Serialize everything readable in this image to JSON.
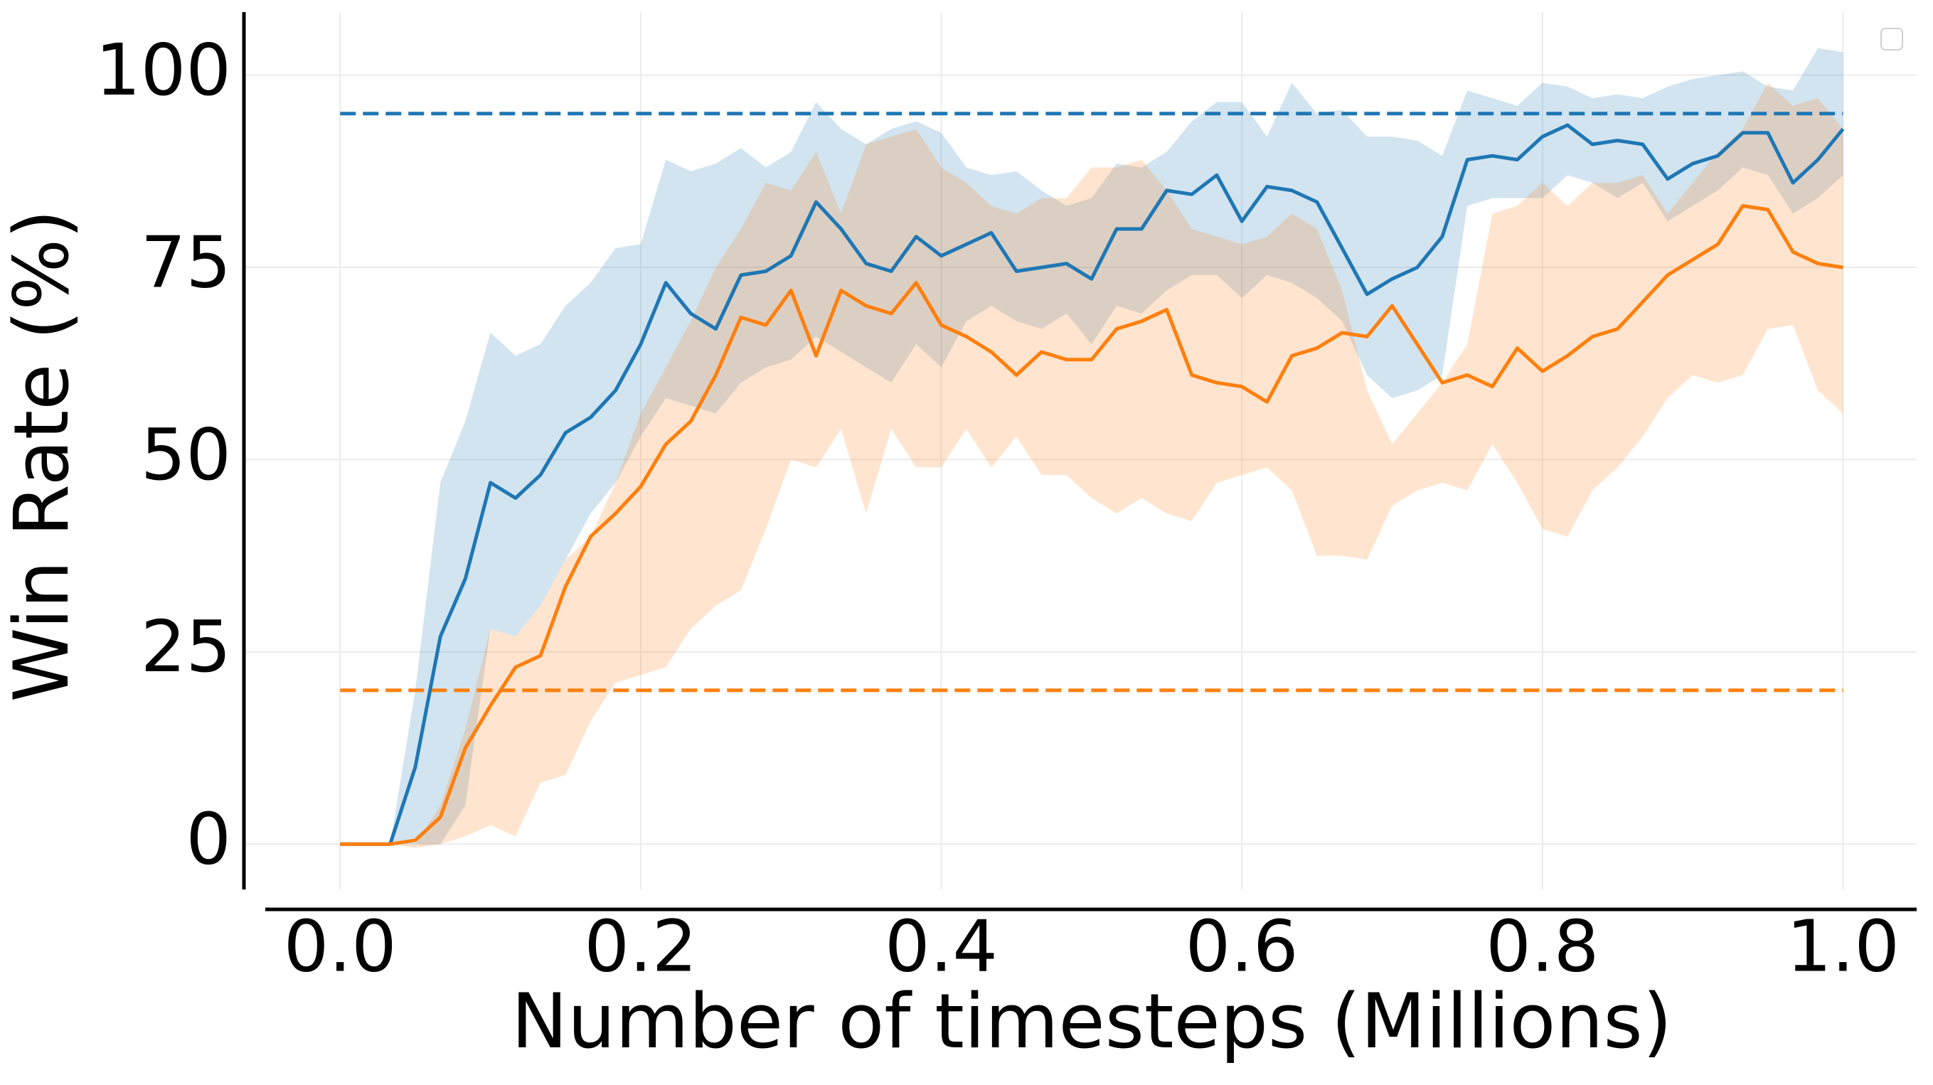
{
  "chart_data": {
    "type": "line",
    "xlabel": "Number of timesteps (Millions)",
    "ylabel": "Win Rate (%)",
    "x": [
      0,
      0.0167,
      0.0333,
      0.05,
      0.0667,
      0.0833,
      0.1,
      0.1167,
      0.1333,
      0.15,
      0.1667,
      0.1833,
      0.2,
      0.2167,
      0.2333,
      0.25,
      0.2667,
      0.2833,
      0.3,
      0.3167,
      0.3333,
      0.35,
      0.3667,
      0.3833,
      0.4,
      0.4167,
      0.4333,
      0.45,
      0.4667,
      0.4833,
      0.5,
      0.5167,
      0.5333,
      0.55,
      0.5667,
      0.5833,
      0.6,
      0.6167,
      0.6333,
      0.65,
      0.6667,
      0.6833,
      0.7,
      0.7167,
      0.7333,
      0.75,
      0.7667,
      0.7833,
      0.8,
      0.8167,
      0.8333,
      0.85,
      0.8667,
      0.8833,
      0.9,
      0.9167,
      0.9333,
      0.95,
      0.9667,
      0.9833,
      1
    ],
    "series": [
      {
        "color": "#1f77b4",
        "values": [
          0,
          0,
          0,
          10,
          27,
          34.5,
          47,
          45,
          48,
          53.5,
          55.5,
          59,
          65,
          73,
          69,
          67,
          74,
          74.5,
          76.5,
          83.5,
          80,
          75.5,
          74.5,
          79,
          76.5,
          78,
          79.5,
          74.5,
          75,
          75.5,
          73.5,
          80,
          80,
          85,
          84.5,
          87,
          81,
          85.5,
          85,
          83.5,
          77.5,
          71.5,
          73.5,
          75,
          79,
          89,
          89.5,
          89,
          92,
          93.5,
          91,
          91.5,
          91,
          86.5,
          88.5,
          89.5,
          92.5,
          92.5,
          86,
          89,
          93
        ],
        "upper": [
          0,
          0,
          0,
          20,
          47,
          55,
          66.5,
          63.5,
          65,
          70,
          73,
          77.5,
          78,
          89,
          87.5,
          88.5,
          90.5,
          88,
          90,
          96.5,
          93,
          91,
          93,
          94,
          92.5,
          88,
          87,
          87.5,
          85,
          83,
          84,
          88.5,
          88,
          90,
          94,
          96.5,
          96.5,
          92,
          99,
          95,
          95.5,
          92,
          92,
          91.5,
          89.5,
          98,
          97,
          96,
          99,
          98.5,
          97,
          97.5,
          97,
          98.5,
          99.5,
          100,
          100.5,
          98.5,
          98,
          103.5,
          103
        ],
        "lower": [
          0,
          0,
          0,
          0,
          0,
          5,
          28,
          27,
          31,
          37,
          43,
          47,
          53,
          58,
          57,
          56,
          60,
          62,
          63,
          66,
          64,
          62,
          60,
          65,
          62,
          68,
          70,
          68,
          67,
          69,
          65,
          70,
          69,
          72,
          74,
          74,
          71,
          74,
          73,
          71,
          68,
          61,
          58,
          59,
          61,
          83,
          84,
          84,
          84,
          87,
          86,
          84,
          86,
          81,
          83,
          85,
          88,
          87,
          82,
          84,
          87
        ]
      },
      {
        "color": "#ff7f0e",
        "values": [
          0,
          0,
          0,
          0.5,
          3.5,
          12.5,
          18,
          23,
          24.5,
          33.5,
          40,
          43,
          46.5,
          52,
          55,
          61,
          68.5,
          67.5,
          72,
          63.5,
          72,
          70,
          69,
          73,
          67.5,
          66,
          64,
          61,
          64,
          63,
          63,
          67,
          68,
          69.5,
          61,
          60,
          59.5,
          57.5,
          63.5,
          64.5,
          66.5,
          66,
          70,
          65,
          60,
          61,
          59.5,
          64.5,
          61.5,
          63.5,
          66,
          67,
          70.5,
          74,
          76,
          78,
          83,
          82.5,
          77,
          75.5,
          75
        ],
        "upper": [
          0,
          0,
          0,
          0,
          5,
          15,
          28,
          27,
          31,
          37,
          40,
          47,
          56,
          62,
          68,
          75,
          80,
          86,
          85,
          90,
          82,
          91,
          92,
          93,
          88,
          86,
          83,
          82,
          84,
          84,
          88,
          88,
          89,
          85,
          80,
          79,
          78,
          79,
          82,
          80,
          72,
          59,
          52,
          56,
          60,
          65,
          82,
          83,
          86,
          83,
          86,
          86,
          87,
          82,
          86,
          90,
          93,
          99,
          96,
          97,
          93
        ],
        "lower": [
          0,
          0,
          0,
          -0.5,
          0,
          1,
          2.5,
          1,
          8,
          9,
          16,
          21,
          22,
          23,
          28,
          31,
          33,
          41,
          50,
          49,
          54,
          43,
          54,
          49,
          49,
          54,
          49,
          53,
          48,
          48,
          45,
          43,
          45,
          43,
          42,
          47,
          48,
          49,
          46,
          37.5,
          37.5,
          37,
          44,
          46,
          47,
          46,
          52,
          47,
          41,
          40,
          46,
          49,
          53,
          58,
          61,
          60,
          61,
          67,
          67.5,
          59,
          56
        ]
      }
    ],
    "reference_lines": [
      {
        "value": 95,
        "color": "#1f77b4"
      },
      {
        "value": 20,
        "color": "#ff7f0e"
      }
    ],
    "xlim": [
      -0.064,
      1.049
    ],
    "ylim": [
      -5.9,
      108.2
    ],
    "xticks": [
      {
        "value": 0,
        "label": "0.0"
      },
      0.2,
      0.4,
      0.6,
      0.8,
      {
        "value": 1,
        "label": "1.0"
      }
    ],
    "yticks": [
      0,
      25,
      50,
      75,
      100
    ],
    "grid": true,
    "legend": "upper right"
  }
}
